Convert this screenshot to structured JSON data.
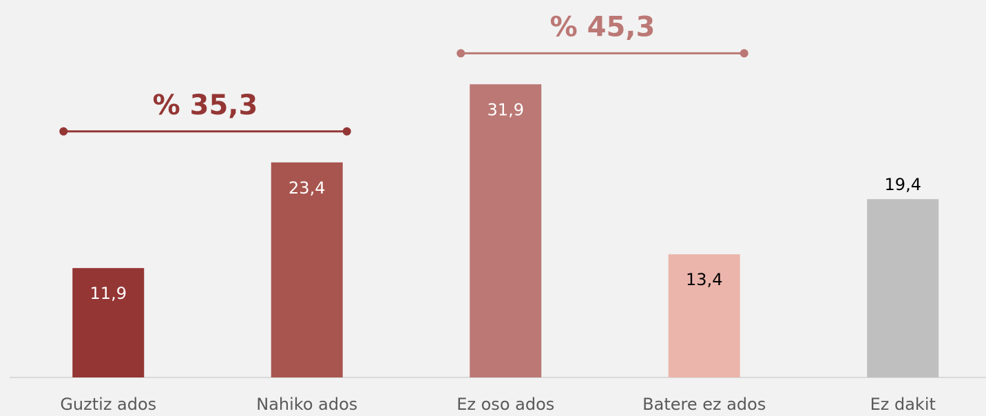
{
  "chart_data": {
    "type": "bar",
    "categories": [
      "Guztiz ados",
      "Nahiko ados",
      "Ez oso ados",
      "Batere ez ados",
      "Ez dakit"
    ],
    "values": [
      11.9,
      23.4,
      31.9,
      13.4,
      19.4
    ],
    "value_labels": [
      "11,9",
      "23,4",
      "31,9",
      "13,4",
      "19,4"
    ],
    "colors": [
      "#943634",
      "#a8554f",
      "#bb7875",
      "#ebb5ab",
      "#bfbfbf"
    ],
    "label_colors": [
      "#ffffff",
      "#ffffff",
      "#ffffff",
      "#000000",
      "#000000"
    ],
    "label_positions": [
      "inside",
      "inside",
      "inside",
      "inside",
      "outside"
    ],
    "ylim": [
      0,
      35
    ],
    "annotations": [
      {
        "text": "% 35,3",
        "from": 0,
        "to": 1,
        "color": "#943634"
      },
      {
        "text": "% 45,3",
        "from": 2,
        "to": 3,
        "color": "#bb7875"
      }
    ]
  }
}
